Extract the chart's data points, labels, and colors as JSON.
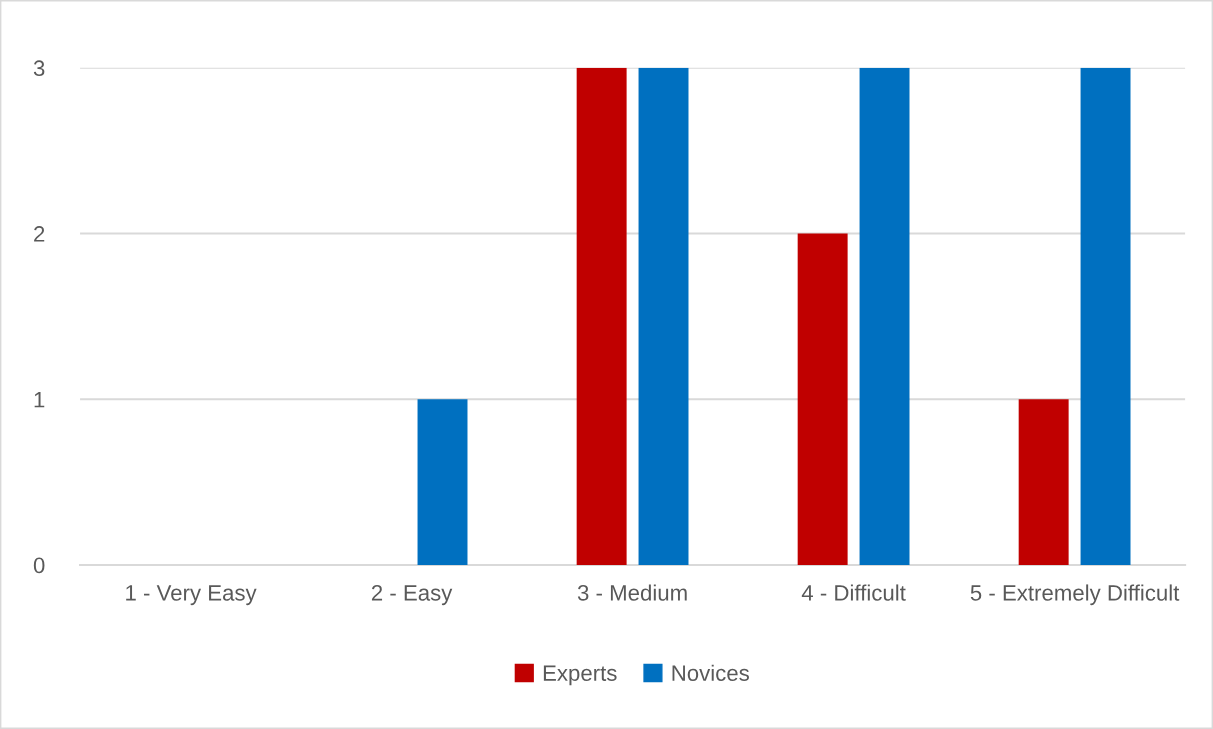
{
  "chart_data": {
    "type": "bar",
    "categories": [
      "1 - Very Easy",
      "2 - Easy",
      "3 - Medium",
      "4 - Difficult",
      "5 - Extremely Difficult"
    ],
    "series": [
      {
        "name": "Experts",
        "color": "#c00000",
        "values": [
          0,
          0,
          3,
          2,
          1
        ]
      },
      {
        "name": "Novices",
        "color": "#0070c0",
        "values": [
          0,
          1,
          3,
          3,
          3
        ]
      }
    ],
    "ylim": [
      0,
      3
    ],
    "yticks": [
      0,
      1,
      2,
      3
    ],
    "grid": "y",
    "legend": "bottom"
  }
}
